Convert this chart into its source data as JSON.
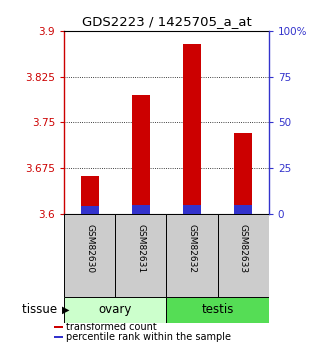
{
  "title": "GDS2223 / 1425705_a_at",
  "samples": [
    "GSM82630",
    "GSM82631",
    "GSM82632",
    "GSM82633"
  ],
  "tissue_labels": [
    "ovary",
    "testis"
  ],
  "tissue_groups": [
    0,
    0,
    1,
    1
  ],
  "red_values": [
    3.663,
    3.795,
    3.878,
    3.733
  ],
  "blue_values": [
    3.613,
    3.615,
    3.615,
    3.614
  ],
  "baseline": 3.6,
  "ylim": [
    3.6,
    3.9
  ],
  "yticks_left": [
    3.6,
    3.675,
    3.75,
    3.825,
    3.9
  ],
  "ytick_labels_left": [
    "3.6",
    "3.675",
    "3.75",
    "3.825",
    "3.9"
  ],
  "yticks_right": [
    0,
    25,
    50,
    75,
    100
  ],
  "ytick_labels_right": [
    "0",
    "25",
    "50",
    "75",
    "100%"
  ],
  "bar_width": 0.35,
  "red_color": "#cc0000",
  "blue_color": "#3333cc",
  "left_axis_color": "#cc0000",
  "right_axis_color": "#3333cc",
  "tissue_colors_light": "#ccffcc",
  "tissue_colors_dark": "#55dd55",
  "sample_box_color": "#cccccc",
  "legend_items": [
    "transformed count",
    "percentile rank within the sample"
  ],
  "legend_colors": [
    "#cc0000",
    "#3333cc"
  ],
  "fig_width": 3.2,
  "fig_height": 3.45,
  "dpi": 100
}
